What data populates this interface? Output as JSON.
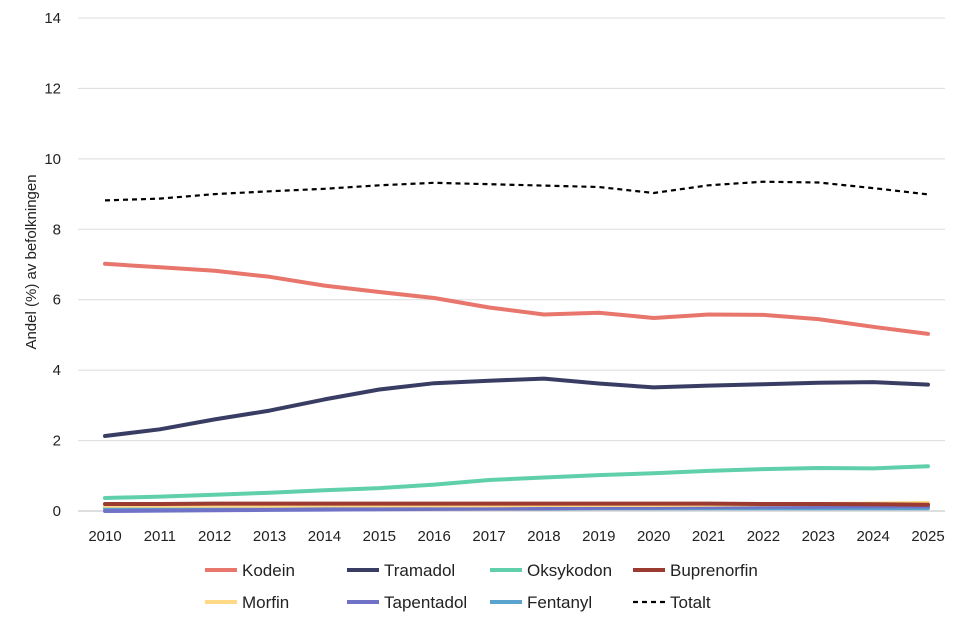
{
  "chart_data": {
    "type": "line",
    "title": "",
    "xlabel": "",
    "ylabel": "Andel (%) av befolkningen",
    "ylim": [
      0,
      14
    ],
    "yticks": [
      0,
      2,
      4,
      6,
      8,
      10,
      12,
      14
    ],
    "grid": true,
    "legend_position": "bottom",
    "x": [
      "2010",
      "2011",
      "2012",
      "2013",
      "2014",
      "2015",
      "2016",
      "2017",
      "2018",
      "2019",
      "2020",
      "2021",
      "2022",
      "2023",
      "2024",
      "2025"
    ],
    "series": [
      {
        "name": "Kodein",
        "color": "#e8766d",
        "dash": false,
        "values": [
          7.02,
          6.92,
          6.82,
          6.65,
          6.4,
          6.22,
          6.05,
          5.78,
          5.58,
          5.63,
          5.48,
          5.58,
          5.57,
          5.45,
          5.23,
          5.03
        ]
      },
      {
        "name": "Tramadol",
        "color": "#3a3d63",
        "dash": false,
        "values": [
          2.13,
          2.32,
          2.6,
          2.85,
          3.17,
          3.45,
          3.63,
          3.7,
          3.76,
          3.62,
          3.51,
          3.56,
          3.6,
          3.64,
          3.66,
          3.59
        ]
      },
      {
        "name": "Oksykodon",
        "color": "#5fd0ab",
        "dash": false,
        "values": [
          0.37,
          0.41,
          0.46,
          0.52,
          0.59,
          0.65,
          0.75,
          0.88,
          0.95,
          1.02,
          1.07,
          1.14,
          1.19,
          1.22,
          1.21,
          1.27
        ]
      },
      {
        "name": "Buprenorfin",
        "color": "#9a3a30",
        "dash": false,
        "values": [
          0.2,
          0.2,
          0.21,
          0.21,
          0.21,
          0.21,
          0.21,
          0.21,
          0.21,
          0.21,
          0.21,
          0.21,
          0.2,
          0.2,
          0.19,
          0.18
        ]
      },
      {
        "name": "Morfin",
        "color": "#ffd985",
        "dash": false,
        "values": [
          0.15,
          0.15,
          0.15,
          0.15,
          0.16,
          0.16,
          0.16,
          0.16,
          0.17,
          0.17,
          0.17,
          0.18,
          0.19,
          0.2,
          0.21,
          0.23
        ]
      },
      {
        "name": "Tapentadol",
        "color": "#6f72c6",
        "dash": false,
        "values": [
          0.0,
          0.01,
          0.02,
          0.03,
          0.04,
          0.05,
          0.06,
          0.07,
          0.08,
          0.09,
          0.1,
          0.11,
          0.12,
          0.12,
          0.13,
          0.13
        ]
      },
      {
        "name": "Fentanyl",
        "color": "#5ba3cf",
        "dash": false,
        "values": [
          0.07,
          0.07,
          0.07,
          0.07,
          0.07,
          0.07,
          0.07,
          0.07,
          0.07,
          0.08,
          0.08,
          0.08,
          0.08,
          0.08,
          0.08,
          0.08
        ]
      },
      {
        "name": "Totalt",
        "color": "#000000",
        "dash": true,
        "values": [
          8.82,
          8.87,
          9.0,
          9.08,
          9.15,
          9.25,
          9.32,
          9.28,
          9.24,
          9.2,
          9.03,
          9.25,
          9.35,
          9.33,
          9.17,
          8.99
        ]
      }
    ]
  }
}
